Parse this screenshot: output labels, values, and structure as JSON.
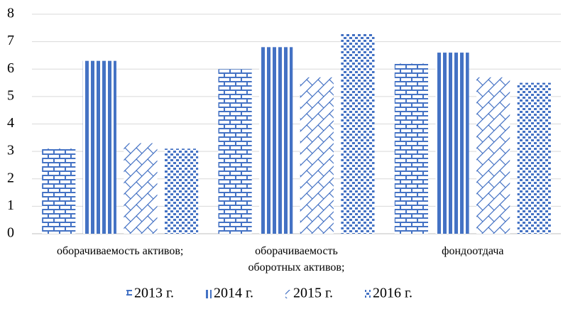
{
  "chart_data": {
    "type": "bar",
    "categories": [
      "оборачиваемость активов;",
      "оборачиваемость оборотных активов;",
      "фондоотдача"
    ],
    "series": [
      {
        "name": "2013 г.",
        "color": "#4472c4",
        "pattern": "brick",
        "values": [
          3.1,
          6.0,
          6.2
        ]
      },
      {
        "name": "2014 г.",
        "color": "#4472c4",
        "pattern": "vertical-stripes",
        "values": [
          6.3,
          6.8,
          6.6
        ]
      },
      {
        "name": "2015 г.",
        "color": "#4472c4",
        "pattern": "diagonal-lattice",
        "values": [
          3.3,
          5.7,
          5.7
        ]
      },
      {
        "name": "2016 г.",
        "color": "#4472c4",
        "pattern": "dots",
        "values": [
          3.1,
          7.3,
          5.5
        ]
      }
    ],
    "ylim": [
      0,
      8
    ],
    "yticks": [
      0,
      1,
      2,
      3,
      4,
      5,
      6,
      7,
      8
    ],
    "grid": true,
    "legend": "bottom"
  }
}
